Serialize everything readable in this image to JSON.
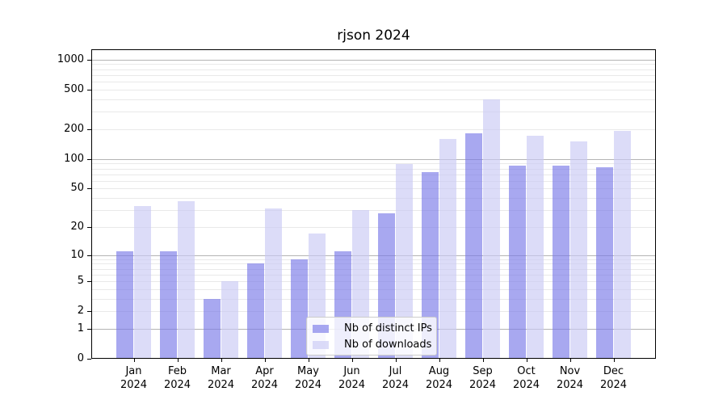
{
  "chart_data": {
    "type": "bar",
    "title": "rjson 2024",
    "categories": [
      "Jan",
      "Feb",
      "Mar",
      "Apr",
      "May",
      "Jun",
      "Jul",
      "Aug",
      "Sep",
      "Oct",
      "Nov",
      "Dec"
    ],
    "year": "2024",
    "series": [
      {
        "name": "Nb of distinct IPs",
        "color": "#7979e8",
        "values": [
          11,
          11,
          3,
          8,
          9,
          11,
          28,
          73,
          180,
          85,
          85,
          83
        ]
      },
      {
        "name": "Nb of downloads",
        "color": "#c9c9f4",
        "values": [
          33,
          37,
          5,
          31,
          17,
          30,
          89,
          160,
          400,
          172,
          150,
          193
        ]
      }
    ],
    "xlabel": "",
    "ylabel": "",
    "yscale": "log1p",
    "ylim": [
      0,
      1270
    ],
    "yticks": [
      0,
      1,
      2,
      5,
      10,
      20,
      50,
      100,
      200,
      500,
      1000
    ],
    "grid": true,
    "legend_position": "lower center",
    "colors": {
      "gridline_minor": "#e9e9e9",
      "gridline_major": "#b4b4b4",
      "axis": "#000000",
      "legend_border": "#cccccc"
    },
    "major_gridline_values": [
      1,
      10,
      100,
      1000
    ],
    "minor_gridline_values": [
      2,
      3,
      4,
      5,
      6,
      7,
      8,
      9,
      20,
      30,
      40,
      50,
      60,
      70,
      80,
      90,
      200,
      300,
      400,
      500,
      600,
      700,
      800,
      900
    ]
  }
}
